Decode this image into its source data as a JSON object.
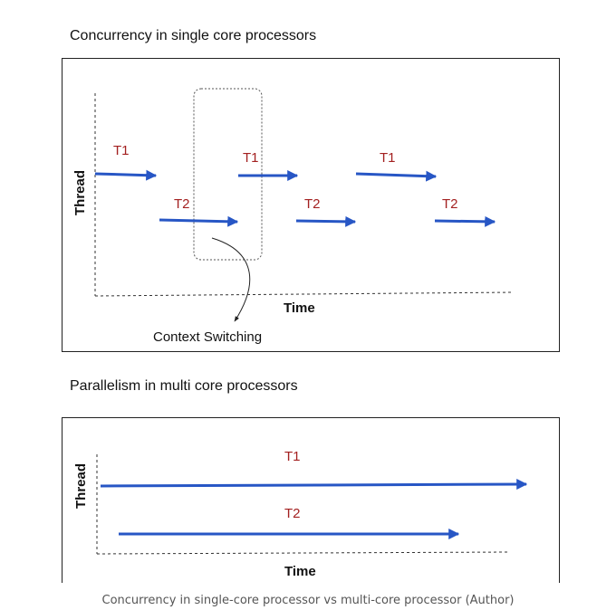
{
  "section1": {
    "title": "Concurrency in single core processors",
    "y_axis_label": "Thread",
    "x_axis_label": "Time",
    "annotation": "Context Switching",
    "labels": [
      "T1",
      "T2",
      "T1",
      "T2",
      "T1",
      "T2"
    ]
  },
  "section2": {
    "title": "Parallelism in multi core processors",
    "y_axis_label": "Thread",
    "x_axis_label": "Time",
    "labels": [
      "T1",
      "T2"
    ]
  },
  "caption": "Concurrency in single-core processor vs multi-core processor (Author)",
  "colors": {
    "arrow": "#2756c5",
    "thread_label": "#a32020",
    "axis": "#333333"
  }
}
